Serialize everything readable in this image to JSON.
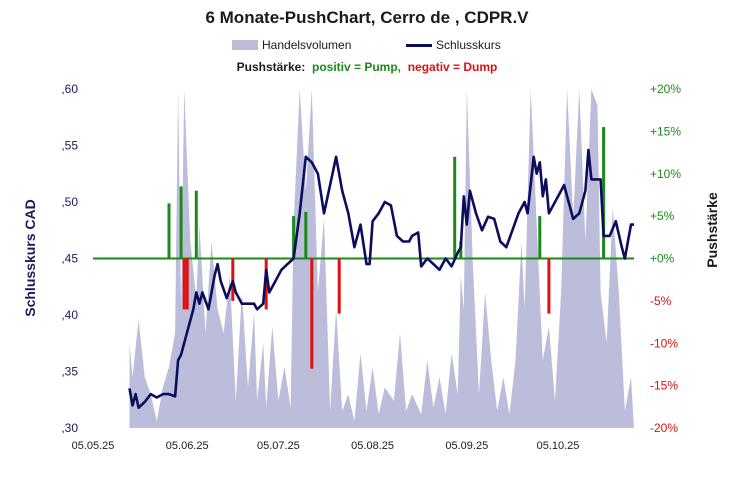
{
  "chart_data": {
    "type": "bar+line",
    "title": "6 Monate-PushChart,  Cerro de , CDPR.V",
    "legend": {
      "volume_label": "Handelsvolumen",
      "close_label": "Schlusskurs",
      "push_title": "Pushstärke:",
      "push_positive": "positiv = Pump,",
      "push_negative": "negativ = Dump"
    },
    "ylabel_left": "Schlusskurs CAD",
    "ylabel_right": "Pushstärke",
    "y_left": {
      "range": [
        0.3,
        0.6
      ],
      "ticks": [
        ",30",
        ",35",
        ",40",
        ",45",
        ",50",
        ",55",
        ",60"
      ]
    },
    "y_right": {
      "range": [
        -20,
        20
      ],
      "ticks": [
        "-20%",
        "-15%",
        "-10%",
        "-5%",
        "+0%",
        "+5%",
        "+10%",
        "+15%",
        "+20%"
      ]
    },
    "x_ticks": [
      "05.05.25",
      "05.06.25",
      "05.07.25",
      "05.08.25",
      "05.09.25",
      "05.10.25"
    ],
    "x_range": [
      "2025-05-05",
      "2025-10-30"
    ],
    "colors": {
      "volume": "#bcbcdb",
      "close": "#0d0d5e",
      "pump": "#1b8a1b",
      "dump": "#e01010",
      "zero_line": "#1b8a1b"
    },
    "close": [
      [
        "2025-05-17",
        0.335
      ],
      [
        "2025-05-18",
        0.32
      ],
      [
        "2025-05-19",
        0.33
      ],
      [
        "2025-05-20",
        0.318
      ],
      [
        "2025-05-22",
        0.323
      ],
      [
        "2025-05-24",
        0.33
      ],
      [
        "2025-05-26",
        0.327
      ],
      [
        "2025-05-28",
        0.33
      ],
      [
        "2025-05-30",
        0.33
      ],
      [
        "2025-06-01",
        0.328
      ],
      [
        "2025-06-02",
        0.36
      ],
      [
        "2025-06-03",
        0.365
      ],
      [
        "2025-06-05",
        0.385
      ],
      [
        "2025-06-07",
        0.405
      ],
      [
        "2025-06-08",
        0.42
      ],
      [
        "2025-06-09",
        0.41
      ],
      [
        "2025-06-10",
        0.42
      ],
      [
        "2025-06-12",
        0.405
      ],
      [
        "2025-06-14",
        0.435
      ],
      [
        "2025-06-15",
        0.445
      ],
      [
        "2025-06-16",
        0.43
      ],
      [
        "2025-06-18",
        0.415
      ],
      [
        "2025-06-20",
        0.43
      ],
      [
        "2025-06-21",
        0.42
      ],
      [
        "2025-06-23",
        0.41
      ],
      [
        "2025-06-25",
        0.41
      ],
      [
        "2025-06-27",
        0.41
      ],
      [
        "2025-06-28",
        0.405
      ],
      [
        "2025-06-30",
        0.41
      ],
      [
        "2025-07-01",
        0.44
      ],
      [
        "2025-07-02",
        0.42
      ],
      [
        "2025-07-04",
        0.43
      ],
      [
        "2025-07-06",
        0.44
      ],
      [
        "2025-07-08",
        0.445
      ],
      [
        "2025-07-10",
        0.45
      ],
      [
        "2025-07-12",
        0.49
      ],
      [
        "2025-07-14",
        0.54
      ],
      [
        "2025-07-16",
        0.535
      ],
      [
        "2025-07-18",
        0.525
      ],
      [
        "2025-07-20",
        0.49
      ],
      [
        "2025-07-22",
        0.515
      ],
      [
        "2025-07-24",
        0.54
      ],
      [
        "2025-07-26",
        0.51
      ],
      [
        "2025-07-28",
        0.49
      ],
      [
        "2025-07-30",
        0.46
      ],
      [
        "2025-08-01",
        0.48
      ],
      [
        "2025-08-03",
        0.445
      ],
      [
        "2025-08-04",
        0.445
      ],
      [
        "2025-08-05",
        0.483
      ],
      [
        "2025-08-07",
        0.49
      ],
      [
        "2025-08-09",
        0.5
      ],
      [
        "2025-08-11",
        0.497
      ],
      [
        "2025-08-13",
        0.47
      ],
      [
        "2025-08-15",
        0.465
      ],
      [
        "2025-08-17",
        0.465
      ],
      [
        "2025-08-18",
        0.47
      ],
      [
        "2025-08-20",
        0.473
      ],
      [
        "2025-08-21",
        0.443
      ],
      [
        "2025-08-23",
        0.45
      ],
      [
        "2025-08-25",
        0.445
      ],
      [
        "2025-08-27",
        0.44
      ],
      [
        "2025-08-29",
        0.45
      ],
      [
        "2025-08-31",
        0.443
      ],
      [
        "2025-09-02",
        0.455
      ],
      [
        "2025-09-03",
        0.46
      ],
      [
        "2025-09-04",
        0.505
      ],
      [
        "2025-09-05",
        0.48
      ],
      [
        "2025-09-06",
        0.51
      ],
      [
        "2025-09-08",
        0.49
      ],
      [
        "2025-09-10",
        0.475
      ],
      [
        "2025-09-12",
        0.487
      ],
      [
        "2025-09-14",
        0.485
      ],
      [
        "2025-09-16",
        0.465
      ],
      [
        "2025-09-18",
        0.46
      ],
      [
        "2025-09-20",
        0.475
      ],
      [
        "2025-09-22",
        0.49
      ],
      [
        "2025-09-24",
        0.5
      ],
      [
        "2025-09-25",
        0.49
      ],
      [
        "2025-09-27",
        0.54
      ],
      [
        "2025-09-28",
        0.525
      ],
      [
        "2025-09-29",
        0.535
      ],
      [
        "2025-09-30",
        0.505
      ],
      [
        "2025-10-01",
        0.52
      ],
      [
        "2025-10-02",
        0.49
      ],
      [
        "2025-10-04",
        0.5
      ],
      [
        "2025-10-06",
        0.51
      ],
      [
        "2025-10-07",
        0.515
      ],
      [
        "2025-10-08",
        0.505
      ],
      [
        "2025-10-10",
        0.485
      ],
      [
        "2025-10-12",
        0.49
      ],
      [
        "2025-10-14",
        0.51
      ],
      [
        "2025-10-15",
        0.546
      ],
      [
        "2025-10-16",
        0.52
      ],
      [
        "2025-10-18",
        0.52
      ],
      [
        "2025-10-19",
        0.52
      ],
      [
        "2025-10-20",
        0.47
      ],
      [
        "2025-10-22",
        0.47
      ],
      [
        "2025-10-24",
        0.483
      ],
      [
        "2025-10-26",
        0.46
      ],
      [
        "2025-10-27",
        0.45
      ],
      [
        "2025-10-28",
        0.465
      ],
      [
        "2025-10-29",
        0.48
      ],
      [
        "2025-10-30",
        0.48
      ]
    ],
    "volume_share": [
      [
        "2025-05-17",
        0.25
      ],
      [
        "2025-05-18",
        0.15
      ],
      [
        "2025-05-20",
        0.32
      ],
      [
        "2025-05-22",
        0.15
      ],
      [
        "2025-05-24",
        0.1
      ],
      [
        "2025-05-26",
        0.02
      ],
      [
        "2025-05-28",
        0.12
      ],
      [
        "2025-05-30",
        0.18
      ],
      [
        "2025-06-01",
        0.28
      ],
      [
        "2025-06-02",
        1.0
      ],
      [
        "2025-06-03",
        0.35
      ],
      [
        "2025-06-04",
        1.0
      ],
      [
        "2025-06-06",
        0.55
      ],
      [
        "2025-06-08",
        0.38
      ],
      [
        "2025-06-09",
        0.6
      ],
      [
        "2025-06-11",
        0.28
      ],
      [
        "2025-06-13",
        0.55
      ],
      [
        "2025-06-15",
        0.35
      ],
      [
        "2025-06-17",
        0.28
      ],
      [
        "2025-06-19",
        0.45
      ],
      [
        "2025-06-21",
        0.08
      ],
      [
        "2025-06-23",
        0.4
      ],
      [
        "2025-06-25",
        0.12
      ],
      [
        "2025-06-27",
        0.34
      ],
      [
        "2025-06-28",
        0.08
      ],
      [
        "2025-06-30",
        0.25
      ],
      [
        "2025-07-01",
        0.06
      ],
      [
        "2025-07-03",
        0.3
      ],
      [
        "2025-07-05",
        0.08
      ],
      [
        "2025-07-07",
        0.18
      ],
      [
        "2025-07-09",
        0.06
      ],
      [
        "2025-07-10",
        0.6
      ],
      [
        "2025-07-12",
        1.0
      ],
      [
        "2025-07-14",
        0.7
      ],
      [
        "2025-07-16",
        1.0
      ],
      [
        "2025-07-18",
        0.4
      ],
      [
        "2025-07-20",
        0.62
      ],
      [
        "2025-07-22",
        0.05
      ],
      [
        "2025-07-24",
        0.35
      ],
      [
        "2025-07-26",
        0.05
      ],
      [
        "2025-07-28",
        0.1
      ],
      [
        "2025-07-30",
        0.02
      ],
      [
        "2025-08-01",
        0.22
      ],
      [
        "2025-08-03",
        0.05
      ],
      [
        "2025-08-05",
        0.18
      ],
      [
        "2025-08-07",
        0.04
      ],
      [
        "2025-08-09",
        0.12
      ],
      [
        "2025-08-12",
        0.08
      ],
      [
        "2025-08-14",
        0.28
      ],
      [
        "2025-08-16",
        0.05
      ],
      [
        "2025-08-18",
        0.1
      ],
      [
        "2025-08-21",
        0.04
      ],
      [
        "2025-08-23",
        0.2
      ],
      [
        "2025-08-25",
        0.06
      ],
      [
        "2025-08-27",
        0.15
      ],
      [
        "2025-08-29",
        0.04
      ],
      [
        "2025-08-31",
        0.22
      ],
      [
        "2025-09-02",
        0.1
      ],
      [
        "2025-09-03",
        0.45
      ],
      [
        "2025-09-04",
        0.35
      ],
      [
        "2025-09-05",
        1.0
      ],
      [
        "2025-09-07",
        0.48
      ],
      [
        "2025-09-09",
        0.1
      ],
      [
        "2025-09-11",
        0.4
      ],
      [
        "2025-09-13",
        0.2
      ],
      [
        "2025-09-15",
        0.05
      ],
      [
        "2025-09-17",
        0.15
      ],
      [
        "2025-09-19",
        0.04
      ],
      [
        "2025-09-21",
        0.2
      ],
      [
        "2025-09-23",
        0.55
      ],
      [
        "2025-09-24",
        0.35
      ],
      [
        "2025-09-26",
        1.0
      ],
      [
        "2025-09-28",
        0.6
      ],
      [
        "2025-09-30",
        0.2
      ],
      [
        "2025-10-02",
        0.3
      ],
      [
        "2025-10-04",
        0.08
      ],
      [
        "2025-10-06",
        0.4
      ],
      [
        "2025-10-08",
        1.0
      ],
      [
        "2025-10-10",
        0.62
      ],
      [
        "2025-10-12",
        1.0
      ],
      [
        "2025-10-14",
        0.55
      ],
      [
        "2025-10-16",
        1.0
      ],
      [
        "2025-10-18",
        0.95
      ],
      [
        "2025-10-19",
        0.4
      ],
      [
        "2025-10-21",
        0.25
      ],
      [
        "2025-10-23",
        0.65
      ],
      [
        "2025-10-25",
        0.4
      ],
      [
        "2025-10-27",
        0.05
      ],
      [
        "2025-10-29",
        0.15
      ],
      [
        "2025-10-30",
        0.0
      ]
    ],
    "push": [
      [
        "2025-05-30",
        6.5
      ],
      [
        "2025-06-03",
        8.5
      ],
      [
        "2025-06-04",
        -6
      ],
      [
        "2025-06-05",
        -6
      ],
      [
        "2025-06-08",
        8
      ],
      [
        "2025-06-20",
        -5
      ],
      [
        "2025-07-01",
        -6
      ],
      [
        "2025-07-10",
        5
      ],
      [
        "2025-07-14",
        5.5
      ],
      [
        "2025-07-16",
        -13
      ],
      [
        "2025-07-25",
        -6.5
      ],
      [
        "2025-09-01",
        12
      ],
      [
        "2025-09-03",
        2
      ],
      [
        "2025-09-29",
        5
      ],
      [
        "2025-10-02",
        -6.5
      ],
      [
        "2025-10-20",
        15.5
      ]
    ]
  }
}
